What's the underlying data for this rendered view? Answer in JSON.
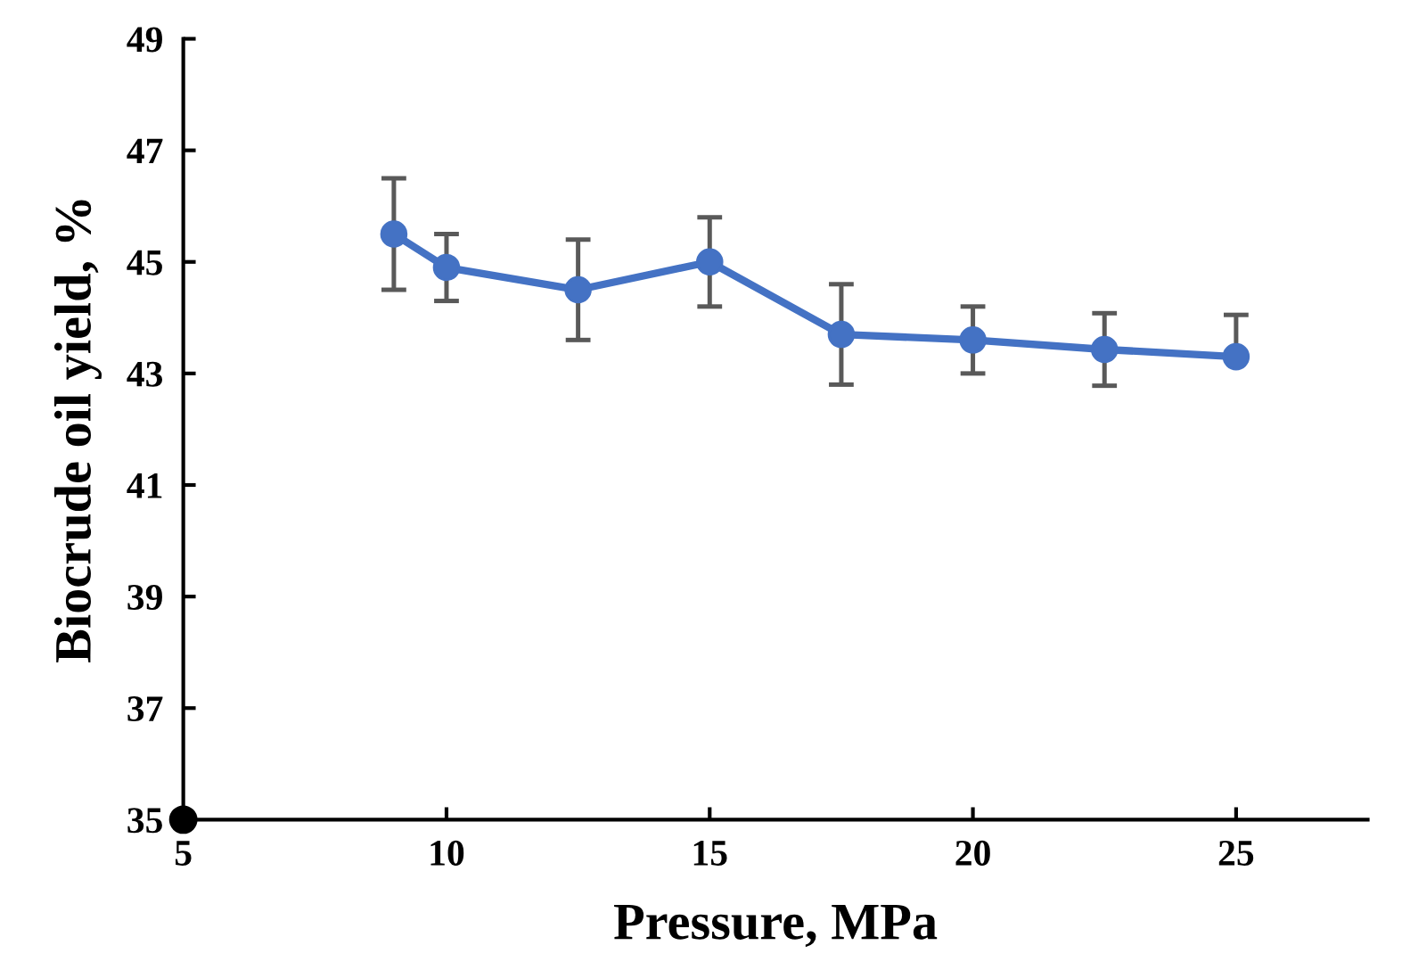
{
  "chart_data": {
    "type": "line",
    "xlabel": "Pressure, MPa",
    "ylabel": "Biocrude oil yield, %",
    "xlim": [
      5,
      27.5
    ],
    "ylim": [
      35,
      49
    ],
    "xticks": [
      5,
      10,
      15,
      20,
      25
    ],
    "yticks": [
      35,
      37,
      39,
      41,
      43,
      45,
      47,
      49
    ],
    "grid": false,
    "marker": "circle",
    "line_style": "solid",
    "series": [
      {
        "color": "#4472c4",
        "x": [
          9,
          10,
          12.5,
          15,
          17.5,
          20,
          22.5,
          25
        ],
        "values": [
          45.5,
          44.9,
          44.5,
          45.0,
          43.7,
          43.6,
          43.43,
          43.3
        ],
        "errors": [
          1.0,
          0.6,
          0.9,
          0.8,
          0.9,
          0.6,
          0.65,
          [
            43.3,
            44.05
          ]
        ]
      },
      {
        "type": "scatter",
        "color": "#000000",
        "x": [
          5
        ],
        "values": [
          35
        ]
      }
    ]
  }
}
